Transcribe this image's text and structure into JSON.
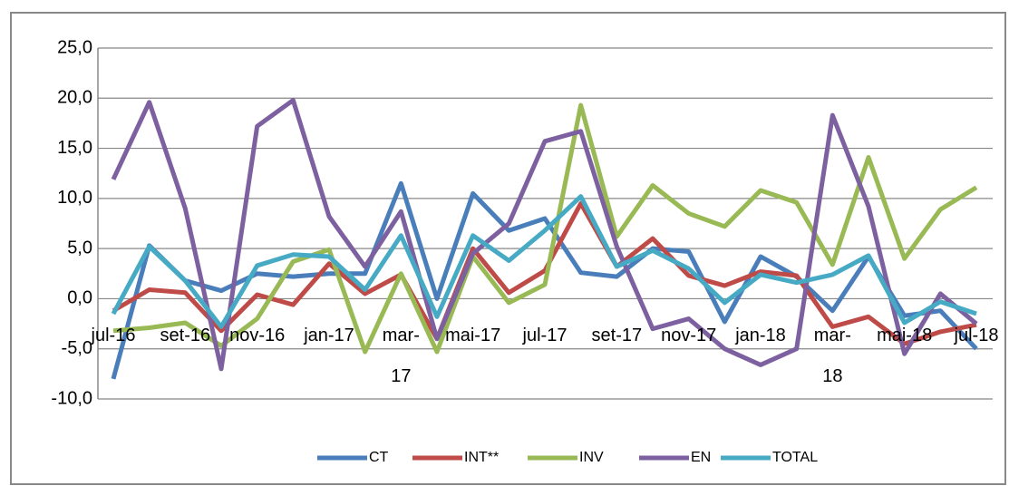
{
  "chart_data": {
    "type": "line",
    "categories": [
      "jul-16",
      null,
      "set-16",
      null,
      "nov-16",
      null,
      "jan-17",
      null,
      "mar-\n17",
      null,
      "mai-17",
      null,
      "jul-17",
      null,
      "set-17",
      null,
      "nov-17",
      null,
      "jan-18",
      null,
      "mar-\n18",
      null,
      "mai-18",
      null,
      "jul-18"
    ],
    "series": [
      {
        "name": "CT",
        "color": "#4a7ebb",
        "values": [
          -8,
          5.3,
          1.8,
          0.8,
          2.5,
          2.2,
          2.5,
          2.5,
          11.5,
          0,
          10.5,
          6.8,
          8,
          2.6,
          2.2,
          5,
          4.7,
          -2.3,
          4.2,
          2.2,
          -1.2,
          4.2,
          -1.7,
          -1.2,
          -5
        ]
      },
      {
        "name": "INT**",
        "color": "#be4b48",
        "values": [
          -1.2,
          0.9,
          0.6,
          -3.2,
          0.4,
          -0.6,
          3.5,
          0.5,
          2.4,
          -4,
          5,
          0.6,
          2.8,
          9.5,
          3.2,
          6,
          2.3,
          1.3,
          2.7,
          2.3,
          -2.8,
          -1.8,
          -4.5,
          -3.3,
          -2.6
        ]
      },
      {
        "name": "INV",
        "color": "#98b954",
        "values": [
          -3.2,
          -2.9,
          -2.4,
          -4.7,
          -2,
          3.7,
          4.9,
          -5.3,
          2.5,
          -5.3,
          4.2,
          -0.4,
          1.4,
          19.3,
          6.2,
          11.3,
          8.5,
          7.2,
          10.8,
          9.6,
          3.4,
          14.1,
          4,
          8.9,
          11.1
        ]
      },
      {
        "name": "EN",
        "color": "#7d60a0",
        "values": [
          11.9,
          19.6,
          9,
          -7,
          17.2,
          19.8,
          8.2,
          3.2,
          8.7,
          -4,
          4.5,
          7.5,
          15.7,
          16.7,
          5.2,
          -3,
          -2,
          -5,
          -6.6,
          -5,
          18.3,
          9.2,
          -5.5,
          0.5,
          -2.5
        ]
      },
      {
        "name": "TOTAL",
        "color": "#46aac5",
        "values": [
          -1.5,
          5.2,
          1.8,
          -2.8,
          3.3,
          4.4,
          4.2,
          0.9,
          6.3,
          -1.8,
          6.3,
          3.8,
          6.8,
          10.2,
          3.2,
          4.8,
          3,
          -0.4,
          2.4,
          1.6,
          2.4,
          4.3,
          -2.4,
          -0.3,
          -1.5
        ]
      }
    ],
    "ylim": [
      -10,
      25
    ],
    "yticks": [
      {
        "value": -10,
        "label": "-10,0"
      },
      {
        "value": -5,
        "label": "-5,0"
      },
      {
        "value": 0,
        "label": "0,0"
      },
      {
        "value": 5,
        "label": "5,0"
      },
      {
        "value": 10,
        "label": "10,0"
      },
      {
        "value": 15,
        "label": "15,0"
      },
      {
        "value": 20,
        "label": "20,0"
      },
      {
        "value": 25,
        "label": "25,0"
      }
    ],
    "grid": true,
    "legend": "bottom"
  }
}
